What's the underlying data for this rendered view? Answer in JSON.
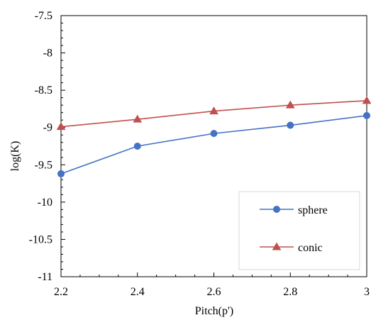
{
  "chart_data": {
    "type": "line",
    "xlabel": "Pitch(p')",
    "ylabel": "log(K)",
    "xlim": [
      2.2,
      3
    ],
    "ylim": [
      -11,
      -7.5
    ],
    "x_ticks": [
      "2.2",
      "2.4",
      "2.6",
      "2.8",
      "3"
    ],
    "y_ticks": [
      "-7.5",
      "-8",
      "-8.5",
      "-9",
      "-9.5",
      "-10",
      "-10.5",
      "-11"
    ],
    "grid": false,
    "legend_position": "bottom-right",
    "x": [
      2.2,
      2.4,
      2.6,
      2.8,
      3.0
    ],
    "series": [
      {
        "name": "sphere",
        "color": "#4472C4",
        "marker": "circle",
        "values": [
          -9.62,
          -9.25,
          -9.08,
          -8.97,
          -8.84
        ]
      },
      {
        "name": "conic",
        "color": "#C0504D",
        "marker": "triangle",
        "values": [
          -8.99,
          -8.89,
          -8.78,
          -8.7,
          -8.64
        ]
      }
    ]
  }
}
